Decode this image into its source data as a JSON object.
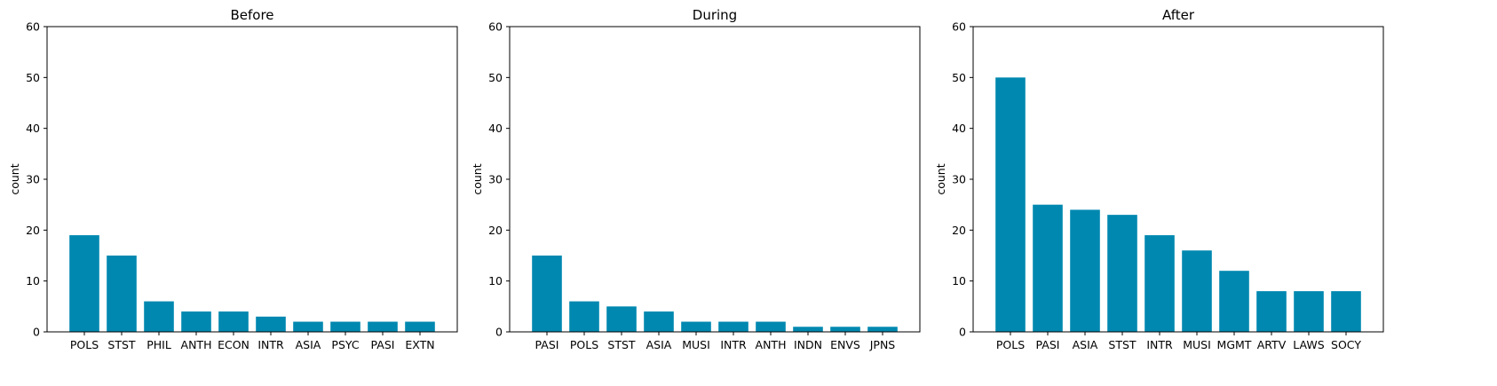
{
  "chart_data": [
    {
      "type": "bar",
      "title": "Before",
      "xlabel": "",
      "ylabel": "count",
      "ylim": [
        0,
        60
      ],
      "yticks": [
        0,
        10,
        20,
        30,
        40,
        50,
        60
      ],
      "grid": false,
      "categories": [
        "POLS",
        "STST",
        "PHIL",
        "ANTH",
        "ECON",
        "INTR",
        "ASIA",
        "PSYC",
        "PASI",
        "EXTN"
      ],
      "values": [
        19,
        15,
        6,
        4,
        4,
        3,
        2,
        2,
        2,
        2
      ]
    },
    {
      "type": "bar",
      "title": "During",
      "xlabel": "",
      "ylabel": "count",
      "ylim": [
        0,
        60
      ],
      "yticks": [
        0,
        10,
        20,
        30,
        40,
        50,
        60
      ],
      "grid": false,
      "categories": [
        "PASI",
        "POLS",
        "STST",
        "ASIA",
        "MUSI",
        "INTR",
        "ANTH",
        "INDN",
        "ENVS",
        "JPNS"
      ],
      "values": [
        15,
        6,
        5,
        4,
        2,
        2,
        2,
        1,
        1,
        1
      ]
    },
    {
      "type": "bar",
      "title": "After",
      "xlabel": "",
      "ylabel": "count",
      "ylim": [
        0,
        60
      ],
      "yticks": [
        0,
        10,
        20,
        30,
        40,
        50,
        60
      ],
      "grid": false,
      "categories": [
        "POLS",
        "PASI",
        "ASIA",
        "STST",
        "INTR",
        "MUSI",
        "MGMT",
        "ARTV",
        "LAWS",
        "SOCY"
      ],
      "values": [
        50,
        25,
        24,
        23,
        19,
        16,
        12,
        8,
        8,
        8
      ]
    }
  ],
  "colors": {
    "bar": "#0088b0",
    "axis": "#000000"
  }
}
